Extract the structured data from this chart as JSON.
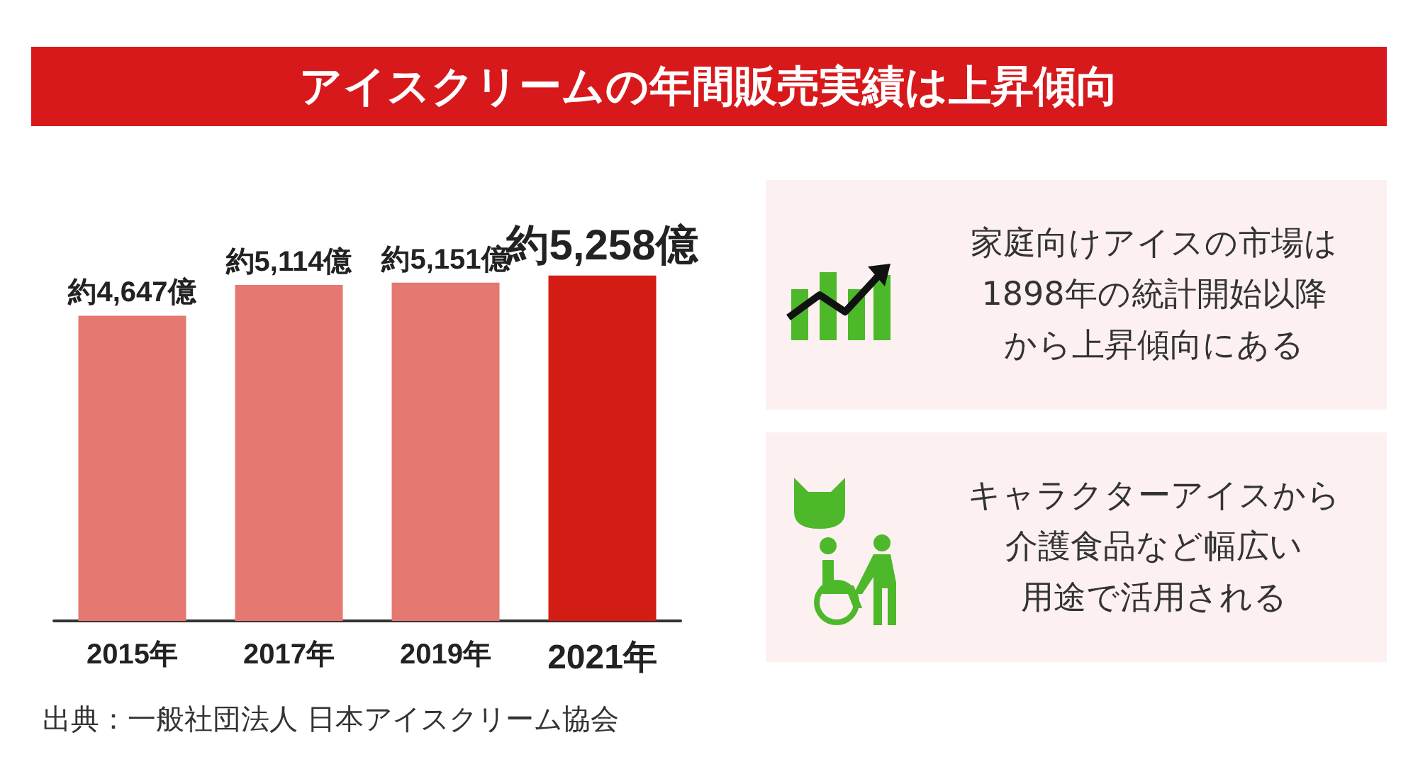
{
  "chart_data": {
    "type": "bar",
    "title": "アイスクリームの年間販売実績は上昇傾向",
    "categories": [
      "2015年",
      "2017年",
      "2019年",
      "2021年"
    ],
    "values": [
      4647,
      5114,
      5151,
      5258
    ],
    "colors": [
      "#e57870",
      "#e57870",
      "#e57870",
      "#d31d14"
    ],
    "value_labels": [
      "約4,647億",
      "約5,114億",
      "約5,151億",
      "約5,258億"
    ],
    "annotations": [
      "家庭向けアイスの市場は",
      "1898年の統計開始以降",
      "から上昇傾向にある",
      "キャラクターアイスから",
      "介護食品など幅広い",
      "用途で活用される",
      "出典：一般社団法人 日本アイスクリーム協会"
    ]
  }
}
